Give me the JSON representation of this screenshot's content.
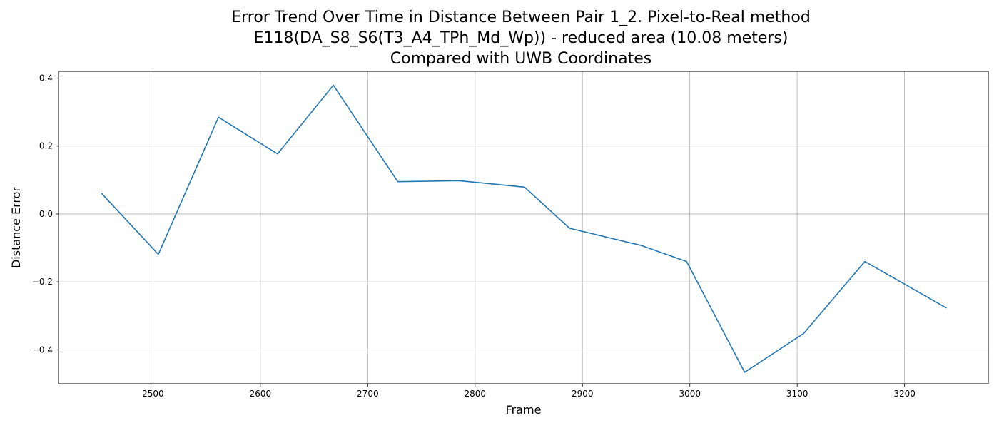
{
  "chart_data": {
    "type": "line",
    "title_lines": [
      "Error Trend Over Time in Distance Between Pair 1_2. Pixel-to-Real method",
      "E118(DA_S8_S6(T3_A4_TPh_Md_Wp)) - reduced area (10.08 meters)",
      "Compared with UWB Coordinates"
    ],
    "xlabel": "Frame",
    "ylabel": "Distance Error",
    "xlim": [
      2412,
      3278
    ],
    "ylim": [
      -0.5,
      0.42
    ],
    "xticks": [
      2500,
      2600,
      2700,
      2800,
      2900,
      3000,
      3100,
      3200
    ],
    "yticks": [
      -0.4,
      -0.2,
      0.0,
      0.2,
      0.4
    ],
    "ytick_labels": [
      "−0.4",
      "−0.2",
      "0.0",
      "0.2",
      "0.4"
    ],
    "grid": true,
    "series": [
      {
        "color": "#1f77b4",
        "x": [
          2452,
          2505,
          2561,
          2616,
          2668,
          2728,
          2785,
          2846,
          2888,
          2955,
          2997,
          3051,
          3106,
          3163,
          3239
        ],
        "y": [
          0.061,
          -0.119,
          0.285,
          0.177,
          0.379,
          0.095,
          0.098,
          0.079,
          -0.042,
          -0.093,
          -0.14,
          -0.466,
          -0.352,
          -0.14,
          -0.277
        ]
      }
    ]
  }
}
